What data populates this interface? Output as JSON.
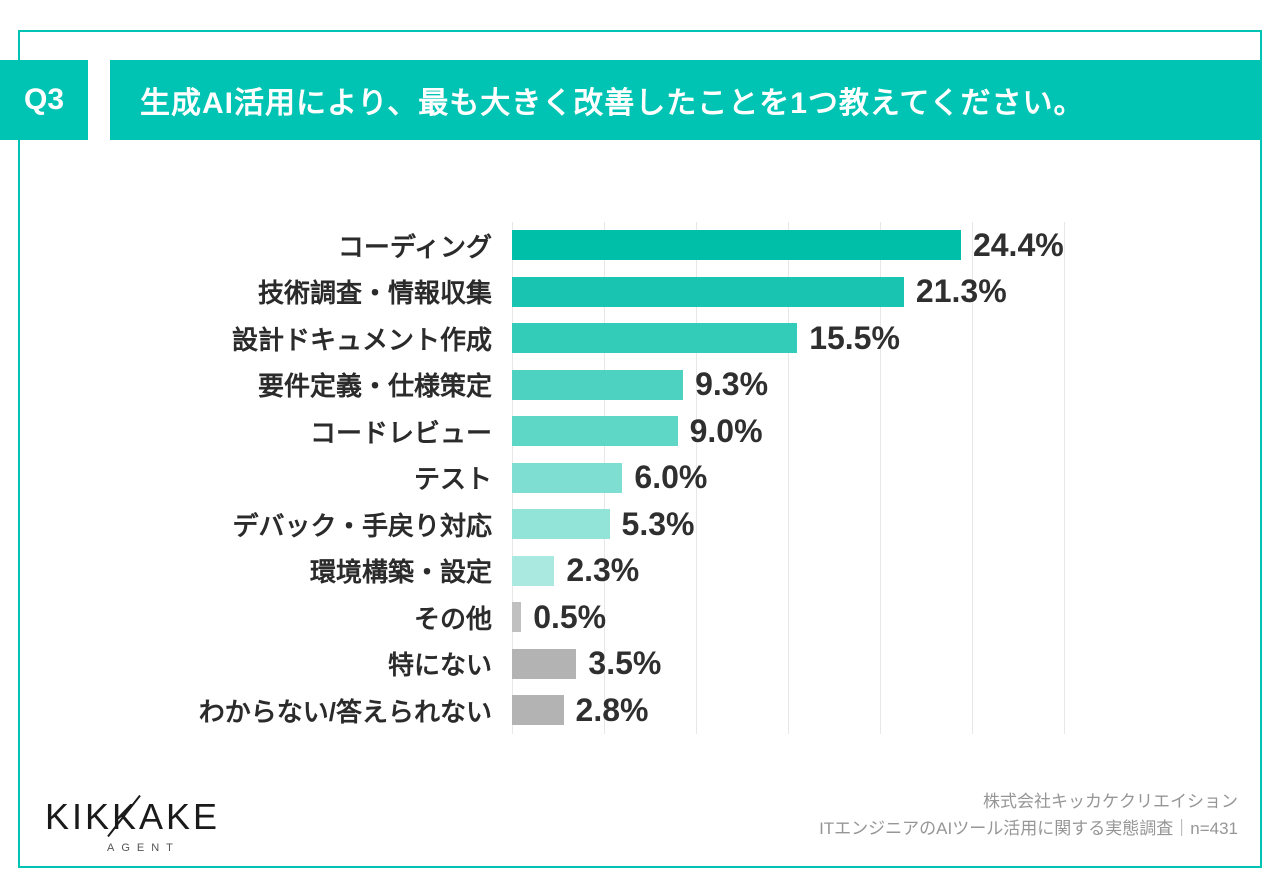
{
  "header": {
    "badge": "Q3",
    "title": "生成AI活用により、最も大きく改善したことを1つ教えてください。"
  },
  "chart_data": {
    "type": "bar",
    "orientation": "horizontal",
    "title": "生成AI活用により、最も大きく改善したこと",
    "categories": [
      "コーディング",
      "技術調査・情報収集",
      "設計ドキュメント作成",
      "要件定義・仕様策定",
      "コードレビュー",
      "テスト",
      "デバック・手戻り対応",
      "環境構築・設定",
      "その他",
      "特にない",
      "わからない/答えられない"
    ],
    "values": [
      24.4,
      21.3,
      15.5,
      9.3,
      9.0,
      6.0,
      5.3,
      2.3,
      0.5,
      3.5,
      2.8
    ],
    "value_labels": [
      "24.4%",
      "21.3%",
      "15.5%",
      "9.3%",
      "9.0%",
      "6.0%",
      "5.3%",
      "2.3%",
      "0.5%",
      "3.5%",
      "2.8%"
    ],
    "bar_colors": [
      "#00bfa9",
      "#19c5b1",
      "#33ccb9",
      "#4dd2c1",
      "#5fd7c7",
      "#7eded1",
      "#92e3d8",
      "#a9e9df",
      "#c0c0c0",
      "#b3b3b3",
      "#b3b3b3"
    ],
    "xlim": [
      0,
      30
    ],
    "gridline_step": 5,
    "grid": true,
    "legend": "none"
  },
  "footer": {
    "logo_text": "KIKKAKE",
    "logo_subtext": "AGENT",
    "credit_line1": "株式会社キッカケクリエイション",
    "credit_line2": "ITエンジニアのAIツール活用に関する実態調査｜n=431"
  },
  "colors": {
    "accent": "#00c4b3",
    "gray_bar": "#b3b3b3",
    "text_dark": "#2b2b2b",
    "grid": "#e7e7e7",
    "credit_text": "#969696"
  }
}
